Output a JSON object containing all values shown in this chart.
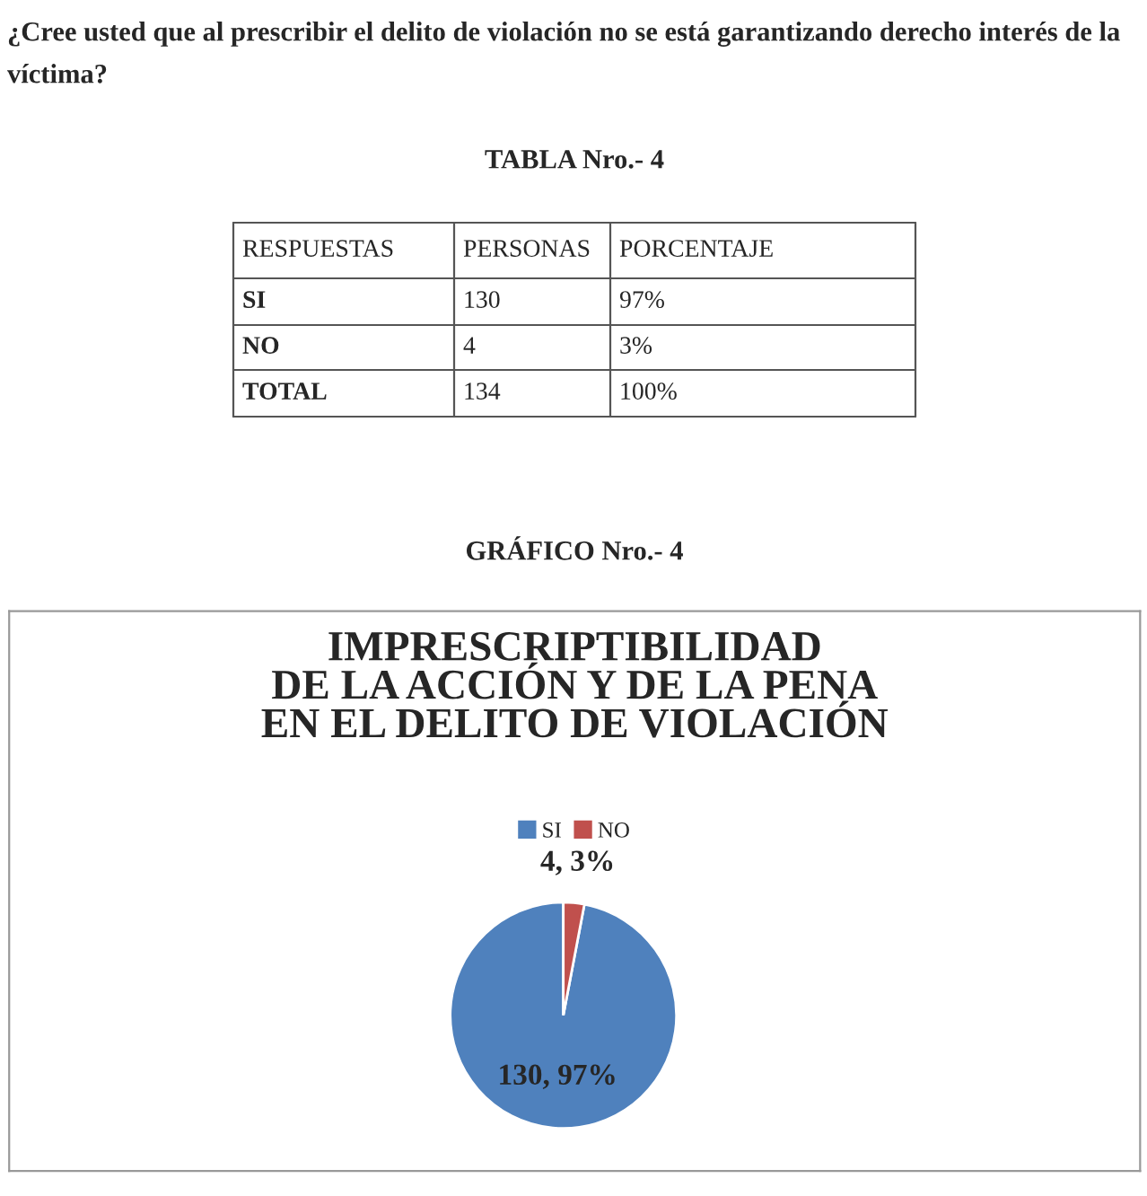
{
  "chart_data": [
    {
      "type": "other",
      "title": "¿Cree usted que al prescribir el delito de violación no se está garantizando derecho interés de la víctima?",
      "subtitle": "TABLA Nro.- 4",
      "annotations": [
        "RESPUESTAS",
        "PERSONAS",
        "PORCENTAJE",
        "SI",
        "130",
        "97%",
        "NO",
        "4",
        "3%",
        "TOTAL",
        "134",
        "100%",
        "GRÁFICO Nro.- 4"
      ]
    },
    {
      "type": "pie",
      "title": "IMPRESCRIPTIBILIDAD\nDE LA ACCIÓN Y DE LA PENA\nEN EL DELITO DE VIOLACIÓN",
      "categories": [
        "SI",
        "NO"
      ],
      "values": [
        130,
        4
      ],
      "colors": [
        "#4f81bd",
        "#c0504d"
      ],
      "value_labels": [
        "130, 97%",
        "4, 3%"
      ],
      "legend": "top"
    }
  ]
}
